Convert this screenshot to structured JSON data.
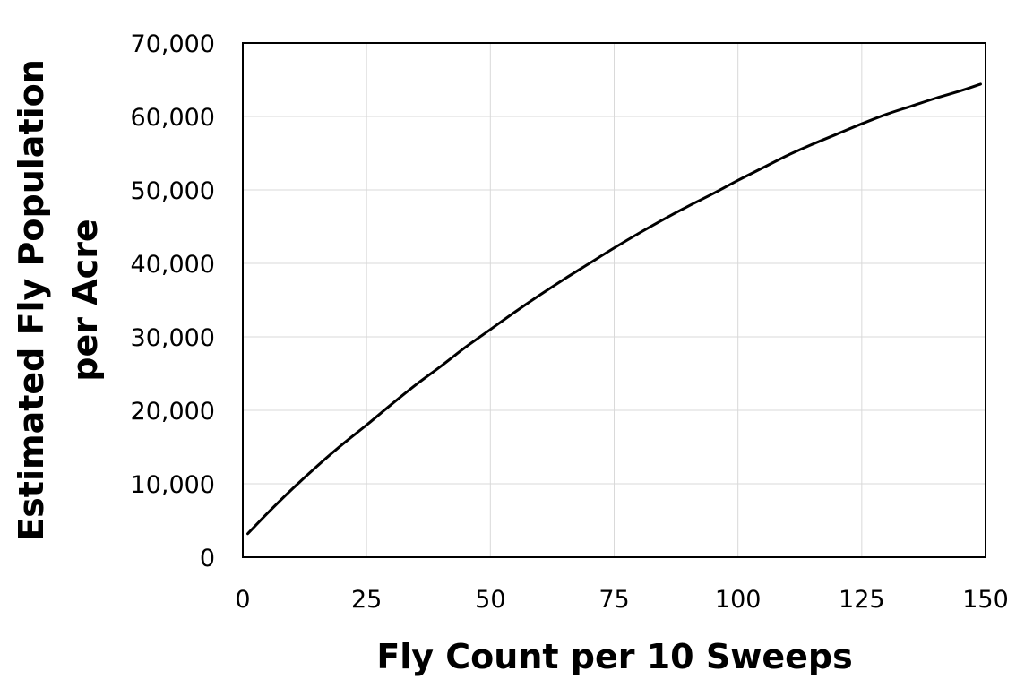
{
  "chart_data": {
    "type": "line",
    "title": "",
    "xlabel": "Fly Count per 10 Sweeps",
    "ylabel_lines": [
      "Estimated Fly Population",
      "per Acre"
    ],
    "xlim": [
      0,
      150
    ],
    "ylim": [
      0,
      70000
    ],
    "x_ticks": [
      0,
      25,
      50,
      75,
      100,
      125,
      150
    ],
    "y_ticks": [
      0,
      10000,
      20000,
      30000,
      40000,
      50000,
      60000,
      70000
    ],
    "x_tick_labels": [
      "0",
      "25",
      "50",
      "75",
      "100",
      "125",
      "150"
    ],
    "y_tick_labels": [
      "0",
      "10,000",
      "20,000",
      "30,000",
      "40,000",
      "50,000",
      "60,000",
      "70,000"
    ],
    "grid": true,
    "legend": "none",
    "series": [
      {
        "color": "#000000",
        "x": [
          1,
          5,
          10,
          15,
          20,
          25,
          30,
          35,
          40,
          45,
          50,
          55,
          60,
          65,
          70,
          75,
          80,
          85,
          90,
          95,
          100,
          105,
          110,
          115,
          120,
          125,
          130,
          135,
          140,
          145,
          149
        ],
        "y": [
          3200,
          6000,
          9300,
          12400,
          15300,
          18000,
          20800,
          23500,
          26000,
          28600,
          31000,
          33400,
          35700,
          37900,
          40000,
          42100,
          44100,
          46000,
          47800,
          49500,
          51300,
          53000,
          54700,
          56200,
          57600,
          59000,
          60300,
          61400,
          62500,
          63500,
          64400
        ]
      }
    ]
  },
  "colors": {
    "axis": "#000000",
    "grid": "#d9d9d9",
    "line": "#000000",
    "background": "#ffffff"
  }
}
